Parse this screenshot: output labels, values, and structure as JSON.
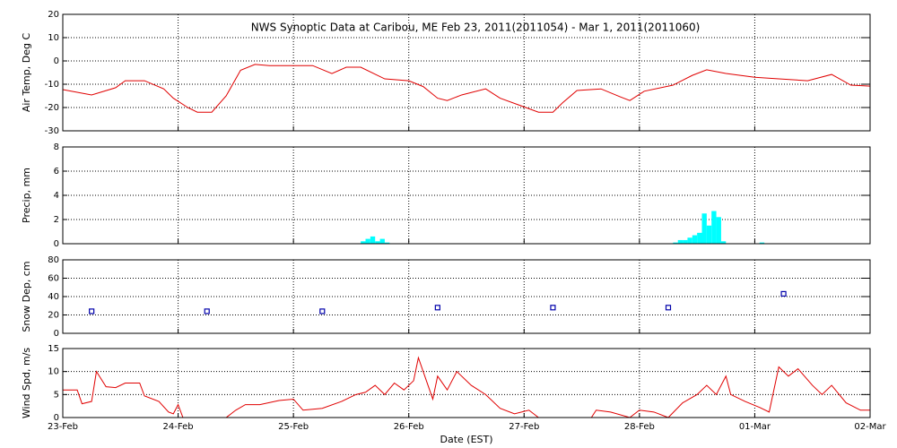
{
  "chart_data": [
    {
      "type": "line",
      "title": "NWS Synoptic Data at Caribou, ME   Feb 23, 2011(2011054) - Mar  1, 2011(2011060)",
      "ylabel": "Air Temp, Deg C",
      "xlim": [
        0,
        168
      ],
      "ylim": [
        -30,
        20
      ],
      "yticks": [
        -30,
        -20,
        -10,
        0,
        10,
        20
      ],
      "grid": true,
      "x": [
        0,
        6,
        11,
        13,
        17,
        21,
        23,
        26,
        28,
        31,
        34,
        37,
        40,
        43,
        52,
        56,
        59,
        62,
        67,
        72,
        75,
        78,
        80,
        83,
        88,
        91,
        95,
        99,
        102,
        104,
        107,
        112,
        116,
        118,
        121,
        127,
        131,
        134,
        138,
        144,
        149,
        155,
        160,
        164,
        168
      ],
      "series": [
        {
          "name": "Air Temp",
          "color": "#e00000",
          "values": [
            -12.3,
            -14.6,
            -11.5,
            -8.5,
            -8.5,
            -12,
            -16,
            -20,
            -22,
            -22,
            -15,
            -4,
            -1.5,
            -2,
            -2,
            -5.4,
            -2.7,
            -2.7,
            -7.7,
            -8.5,
            -11,
            -16,
            -17,
            -14.6,
            -12,
            -16,
            -19,
            -22,
            -22,
            -18,
            -12.7,
            -12,
            -15.4,
            -17,
            -13,
            -10.4,
            -6.2,
            -3.8,
            -5.4,
            -7,
            -7.7,
            -8.5,
            -5.8,
            -10.4,
            -10.8
          ]
        }
      ]
    },
    {
      "type": "bar",
      "ylabel": "Precip, mm",
      "xlim": [
        0,
        168
      ],
      "ylim": [
        0,
        8
      ],
      "yticks": [
        0,
        2,
        4,
        6,
        8
      ],
      "grid": true,
      "x": [
        62,
        63,
        64,
        65,
        66,
        67,
        127,
        128,
        129,
        130,
        131,
        132,
        133,
        134,
        135,
        136,
        137,
        145
      ],
      "series": [
        {
          "name": "Precip",
          "color": "#00ffff",
          "values": [
            0.2,
            0.4,
            0.6,
            0.2,
            0.4,
            0.1,
            0.1,
            0.3,
            0.3,
            0.5,
            0.7,
            0.9,
            2.5,
            1.5,
            2.7,
            2.2,
            0.2,
            0.1
          ]
        }
      ]
    },
    {
      "type": "scatter",
      "ylabel": "Snow Dep, cm",
      "xlim": [
        0,
        168
      ],
      "ylim": [
        0,
        80
      ],
      "yticks": [
        0,
        20,
        40,
        60,
        80
      ],
      "grid": true,
      "x": [
        6,
        30,
        54,
        78,
        102,
        126,
        150
      ],
      "series": [
        {
          "name": "Snow Depth",
          "color": "#0000aa",
          "values": [
            24,
            24,
            24,
            28,
            28,
            28,
            43
          ]
        }
      ]
    },
    {
      "type": "line",
      "ylabel": "Wind Spd, m/s",
      "xlabel": "Date (EST)",
      "xlim": [
        0,
        168
      ],
      "ylim": [
        0,
        15
      ],
      "yticks": [
        0,
        5,
        10,
        15
      ],
      "grid": true,
      "xticks": [
        {
          "value": 0,
          "label": "23-Feb"
        },
        {
          "value": 24,
          "label": "24-Feb"
        },
        {
          "value": 48,
          "label": "25-Feb"
        },
        {
          "value": 72,
          "label": "26-Feb"
        },
        {
          "value": 96,
          "label": "27-Feb"
        },
        {
          "value": 120,
          "label": "28-Feb"
        },
        {
          "value": 144,
          "label": "01-Mar"
        },
        {
          "value": 168,
          "label": "02-Mar"
        }
      ],
      "x": [
        0,
        3,
        4,
        6,
        7,
        9,
        11,
        13,
        16,
        17,
        20,
        22,
        23,
        24,
        25,
        34,
        36,
        38,
        41,
        45,
        48,
        50,
        54,
        58,
        61,
        63,
        65,
        67,
        69,
        71,
        73,
        74,
        76,
        77,
        78,
        80,
        82,
        85,
        88,
        91,
        94,
        97,
        99,
        110,
        111,
        114,
        118,
        120,
        123,
        126,
        129,
        132,
        134,
        136,
        138,
        139,
        142,
        145,
        147,
        149,
        151,
        153,
        156,
        158,
        160,
        163,
        166,
        168
      ],
      "series": [
        {
          "name": "Wind Speed",
          "color": "#e00000",
          "values": [
            6,
            6,
            3,
            3.5,
            10,
            6.7,
            6.5,
            7.5,
            7.5,
            4.7,
            3.5,
            1.2,
            0.8,
            2.8,
            0,
            0,
            1.6,
            2.8,
            2.8,
            3.7,
            4,
            1.6,
            2,
            3.5,
            5,
            5.5,
            7,
            5,
            7.5,
            6,
            8,
            13,
            7,
            4,
            9,
            6,
            10,
            7,
            5,
            2,
            0.8,
            1.6,
            0,
            0,
            1.6,
            1.2,
            0,
            1.6,
            1.2,
            0,
            3.2,
            5,
            7,
            5,
            9,
            5,
            3.5,
            2.2,
            1.2,
            11,
            9,
            10.6,
            7,
            5,
            7,
            3.2,
            1.6,
            1.6
          ]
        }
      ]
    }
  ]
}
